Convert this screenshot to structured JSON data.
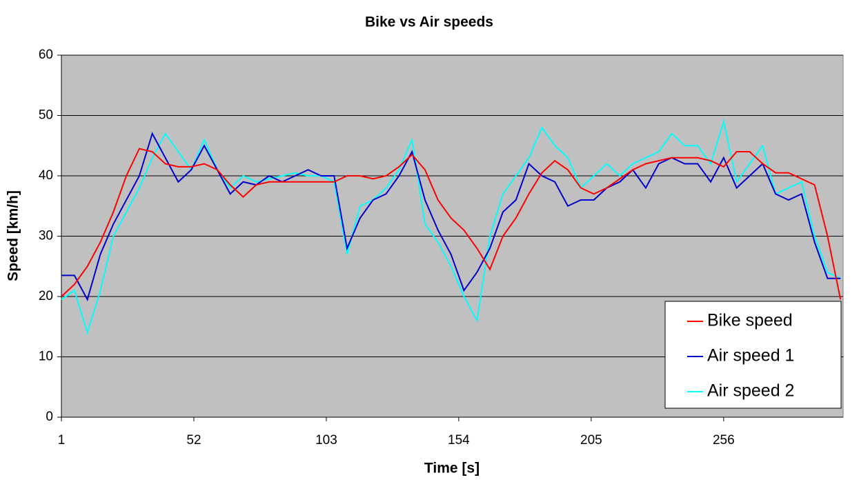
{
  "chart_data": {
    "type": "line",
    "title": "Bike vs Air speeds",
    "xlabel": "Time [s]",
    "ylabel": "Speed [km/h]",
    "x": [
      1,
      6,
      11,
      16,
      21,
      26,
      31,
      36,
      41,
      46,
      51,
      56,
      61,
      66,
      71,
      76,
      81,
      86,
      91,
      96,
      101,
      106,
      111,
      116,
      121,
      126,
      131,
      136,
      141,
      146,
      151,
      156,
      161,
      166,
      171,
      176,
      181,
      186,
      191,
      196,
      201,
      206,
      211,
      216,
      221,
      226,
      231,
      236,
      241,
      246,
      251,
      256,
      261,
      266,
      271,
      276,
      281,
      286,
      291,
      296,
      301
    ],
    "series": [
      {
        "name": "Bike speed",
        "color": "#ff0000",
        "values": [
          20,
          22,
          25,
          29,
          34,
          40,
          44.5,
          44,
          42,
          41.5,
          41.5,
          42,
          41,
          38.5,
          36.5,
          38.5,
          39,
          39,
          39,
          39,
          39,
          39,
          40,
          40,
          39.5,
          40,
          41.5,
          43.5,
          41,
          36,
          33,
          31,
          28,
          24.5,
          30,
          33,
          37,
          40.5,
          42.5,
          41,
          38,
          37,
          38,
          39.5,
          41,
          42,
          42.5,
          43,
          43,
          43,
          42.5,
          41.5,
          44,
          44,
          42,
          40.5,
          40.5,
          39.5,
          38.5,
          30,
          19.5
        ]
      },
      {
        "name": "Air speed 1",
        "color": "#0000cc",
        "values": [
          23.5,
          23.5,
          19.5,
          27,
          32,
          36,
          40,
          47,
          43,
          39,
          41,
          45,
          41,
          37,
          39,
          38.5,
          40,
          39,
          40,
          41,
          40,
          40,
          28,
          33,
          36,
          37,
          40,
          44,
          36,
          31,
          27,
          21,
          24,
          28,
          34,
          36,
          42,
          40,
          39,
          35,
          36,
          36,
          38,
          39,
          41,
          38,
          42,
          43,
          42,
          42,
          39,
          43,
          38,
          40,
          42,
          37,
          36,
          37,
          29,
          23,
          23
        ]
      },
      {
        "name": "Air speed 2",
        "color": "#00ffff",
        "values": [
          19.5,
          21,
          14,
          21,
          30,
          34,
          38,
          43,
          47,
          44,
          41,
          46,
          41,
          38,
          40,
          39,
          39.5,
          40,
          40.5,
          40,
          40,
          39,
          27,
          35,
          36,
          38,
          41,
          46,
          32,
          29,
          25,
          20,
          16,
          30,
          37,
          40,
          43,
          48,
          45,
          43,
          38,
          40,
          42,
          40,
          42,
          43,
          44,
          47,
          45,
          45,
          42,
          49,
          39,
          42,
          45,
          37,
          38,
          39,
          30,
          24,
          23
        ]
      }
    ],
    "xlim": [
      1,
      302
    ],
    "xticks": [
      1,
      52,
      103,
      154,
      205,
      256
    ],
    "ylim": [
      0,
      60
    ],
    "yticks": [
      0,
      10,
      20,
      30,
      40,
      50,
      60
    ],
    "grid": true,
    "legend": "lower right",
    "background": "#c0c0c0"
  }
}
